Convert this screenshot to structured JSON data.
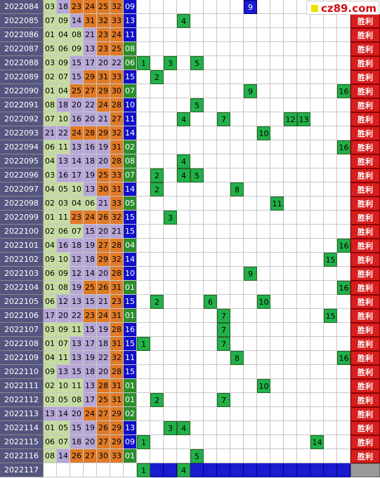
{
  "logo": "cz89.com",
  "result_label": "胜利",
  "rows": [
    {
      "period": "2022084",
      "reds": [
        "03",
        "18",
        "23",
        "24",
        "25",
        "32"
      ],
      "blue": "09",
      "marks": [
        9
      ]
    },
    {
      "period": "2022085",
      "reds": [
        "07",
        "09",
        "14",
        "31",
        "32",
        "33"
      ],
      "blue": "13",
      "marks": [
        4
      ]
    },
    {
      "period": "2022086",
      "reds": [
        "01",
        "04",
        "08",
        "21",
        "23",
        "24"
      ],
      "blue": "11",
      "marks": []
    },
    {
      "period": "2022087",
      "reds": [
        "05",
        "06",
        "09",
        "13",
        "23",
        "25"
      ],
      "blue": "08",
      "marks": []
    },
    {
      "period": "2022088",
      "reds": [
        "03",
        "09",
        "15",
        "17",
        "20",
        "22"
      ],
      "blue": "06",
      "marks": [
        1,
        3,
        5
      ]
    },
    {
      "period": "2022089",
      "reds": [
        "02",
        "07",
        "15",
        "29",
        "31",
        "33"
      ],
      "blue": "15",
      "marks": [
        2
      ]
    },
    {
      "period": "2022090",
      "reds": [
        "01",
        "04",
        "25",
        "27",
        "29",
        "30"
      ],
      "blue": "07",
      "marks": [
        9,
        16
      ]
    },
    {
      "period": "2022091",
      "reds": [
        "08",
        "18",
        "20",
        "22",
        "24",
        "28"
      ],
      "blue": "10",
      "marks": [
        5
      ]
    },
    {
      "period": "2022092",
      "reds": [
        "07",
        "10",
        "16",
        "20",
        "21",
        "27"
      ],
      "blue": "11",
      "marks": [
        4,
        7,
        12,
        13
      ]
    },
    {
      "period": "2022093",
      "reds": [
        "21",
        "22",
        "24",
        "28",
        "29",
        "32"
      ],
      "blue": "14",
      "marks": [
        10
      ]
    },
    {
      "period": "2022094",
      "reds": [
        "06",
        "11",
        "13",
        "16",
        "19",
        "31"
      ],
      "blue": "02",
      "marks": [
        16
      ]
    },
    {
      "period": "2022095",
      "reds": [
        "04",
        "13",
        "14",
        "18",
        "20",
        "28"
      ],
      "blue": "08",
      "marks": [
        4
      ]
    },
    {
      "period": "2022096",
      "reds": [
        "03",
        "16",
        "17",
        "19",
        "25",
        "33"
      ],
      "blue": "07",
      "marks": [
        2,
        4,
        5
      ]
    },
    {
      "period": "2022097",
      "reds": [
        "04",
        "05",
        "10",
        "13",
        "30",
        "31"
      ],
      "blue": "14",
      "marks": [
        2,
        8
      ]
    },
    {
      "period": "2022098",
      "reds": [
        "02",
        "03",
        "04",
        "06",
        "21",
        "33"
      ],
      "blue": "05",
      "marks": [
        11
      ]
    },
    {
      "period": "2022099",
      "reds": [
        "01",
        "11",
        "23",
        "24",
        "26",
        "32"
      ],
      "blue": "15",
      "marks": [
        3
      ]
    },
    {
      "period": "2022100",
      "reds": [
        "02",
        "06",
        "07",
        "15",
        "20",
        "21"
      ],
      "blue": "15",
      "marks": []
    },
    {
      "period": "2022101",
      "reds": [
        "04",
        "16",
        "18",
        "19",
        "27",
        "28"
      ],
      "blue": "04",
      "marks": [
        16
      ]
    },
    {
      "period": "2022102",
      "reds": [
        "09",
        "10",
        "12",
        "18",
        "29",
        "32"
      ],
      "blue": "14",
      "marks": [
        15
      ]
    },
    {
      "period": "2022103",
      "reds": [
        "06",
        "09",
        "12",
        "14",
        "20",
        "28"
      ],
      "blue": "10",
      "marks": [
        9
      ]
    },
    {
      "period": "2022104",
      "reds": [
        "01",
        "08",
        "19",
        "25",
        "26",
        "31"
      ],
      "blue": "01",
      "marks": [
        16
      ]
    },
    {
      "period": "2022105",
      "reds": [
        "06",
        "12",
        "13",
        "15",
        "21",
        "23"
      ],
      "blue": "15",
      "marks": [
        2,
        6,
        10
      ]
    },
    {
      "period": "2022106",
      "reds": [
        "17",
        "20",
        "22",
        "23",
        "24",
        "31"
      ],
      "blue": "01",
      "marks": [
        7,
        15
      ]
    },
    {
      "period": "2022107",
      "reds": [
        "03",
        "09",
        "11",
        "15",
        "19",
        "28"
      ],
      "blue": "16",
      "marks": [
        7
      ]
    },
    {
      "period": "2022108",
      "reds": [
        "01",
        "07",
        "13",
        "17",
        "18",
        "31"
      ],
      "blue": "15",
      "marks": [
        1,
        7
      ]
    },
    {
      "period": "2022109",
      "reds": [
        "04",
        "11",
        "13",
        "19",
        "22",
        "32"
      ],
      "blue": "11",
      "marks": [
        8,
        16
      ]
    },
    {
      "period": "2022110",
      "reds": [
        "09",
        "13",
        "15",
        "18",
        "20",
        "28"
      ],
      "blue": "15",
      "marks": []
    },
    {
      "period": "2022111",
      "reds": [
        "02",
        "10",
        "11",
        "13",
        "28",
        "31"
      ],
      "blue": "01",
      "marks": [
        10
      ]
    },
    {
      "period": "2022112",
      "reds": [
        "03",
        "05",
        "08",
        "17",
        "25",
        "31"
      ],
      "blue": "01",
      "marks": [
        2,
        7
      ]
    },
    {
      "period": "2022113",
      "reds": [
        "13",
        "14",
        "20",
        "24",
        "27",
        "29"
      ],
      "blue": "02",
      "marks": []
    },
    {
      "period": "2022114",
      "reds": [
        "01",
        "05",
        "15",
        "19",
        "26",
        "29"
      ],
      "blue": "13",
      "marks": [
        3,
        4
      ]
    },
    {
      "period": "2022115",
      "reds": [
        "06",
        "07",
        "18",
        "20",
        "27",
        "29"
      ],
      "blue": "09",
      "marks": [
        1,
        14
      ]
    },
    {
      "period": "2022116",
      "reds": [
        "08",
        "14",
        "26",
        "27",
        "30",
        "33"
      ],
      "blue": "01",
      "marks": [
        5
      ]
    },
    {
      "period": "2022117",
      "reds": [],
      "blue": null,
      "marks": [
        1,
        4
      ]
    }
  ]
}
